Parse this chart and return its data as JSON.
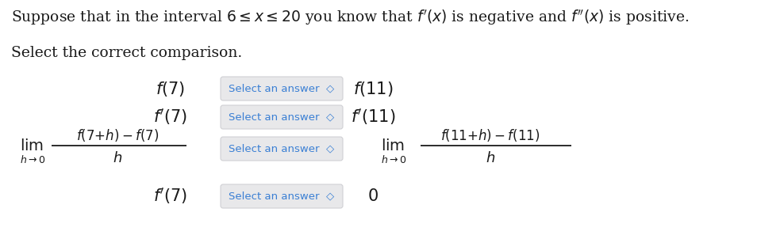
{
  "background_color": "#ffffff",
  "text_color": "#1a1a1a",
  "button_bg": "#e8e8ea",
  "button_fg": "#3a7fd4",
  "button_border": "#d0d0d4",
  "fig_width": 9.88,
  "fig_height": 2.97,
  "dpi": 100,
  "line1": "Suppose that in the interval $6 \\leq x \\leq 20$ you know that $f^{\\prime}(x)$ is negative and $f^{\\prime\\prime}(x)$ is positive.",
  "line2": "Select the correct comparison.",
  "btn_label": "Select an answer  ◇",
  "row0_left": "$f(7)$",
  "row0_right": "$f(11)$",
  "row1_left": "$f^{\\prime}(7)$",
  "row1_right": "$f^{\\prime}(11)$",
  "row3_left": "$f^{\\prime}(7)$",
  "row3_right": "$0$"
}
